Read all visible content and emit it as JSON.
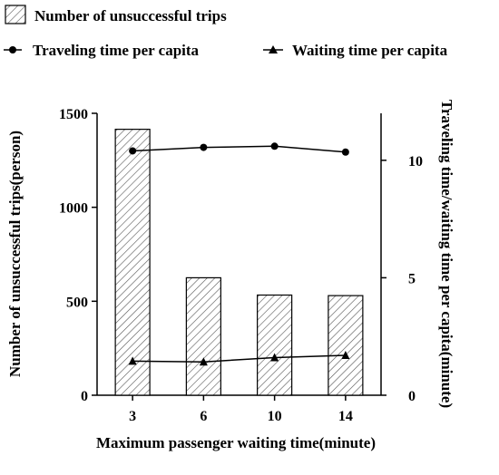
{
  "chart_data": {
    "type": "bar",
    "categories": [
      "3",
      "6",
      "10",
      "14"
    ],
    "xlabel": "Maximum passenger waiting time(minute)",
    "ylabel_left": "Number of unsuccessful trips(person)",
    "ylabel_right": "Traveling time/waiting time per capita(minute)",
    "ylim_left": [
      0,
      1500
    ],
    "yticks_left": [
      "0",
      "500",
      "1000",
      "1500"
    ],
    "ylim_right": [
      0,
      12
    ],
    "yticks_right": [
      "0",
      "5",
      "10"
    ],
    "grid": false,
    "legend_position": "top-left",
    "series": [
      {
        "name": "Number of unsuccessful trips",
        "kind": "bar",
        "axis": "left",
        "pattern": "diagonal-hatch",
        "values": [
          1415,
          625,
          533,
          530
        ]
      },
      {
        "name": "Traveling time per capita",
        "kind": "line",
        "axis": "right",
        "marker": "circle",
        "values": [
          10.4,
          10.55,
          10.6,
          10.35
        ]
      },
      {
        "name": "Waiting time per capita",
        "kind": "line",
        "axis": "right",
        "marker": "triangle",
        "values": [
          1.45,
          1.42,
          1.6,
          1.7
        ]
      }
    ]
  }
}
